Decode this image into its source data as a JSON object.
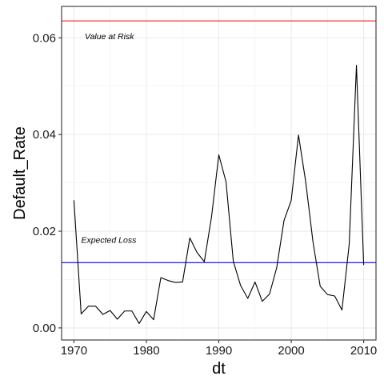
{
  "chart_data": {
    "type": "line",
    "xlabel": "dt",
    "ylabel": "Default_Rate",
    "xlim": [
      1968.3,
      2011.7
    ],
    "ylim": [
      -0.0025,
      0.0665
    ],
    "x_ticks": [
      1970,
      1980,
      1990,
      2000,
      2010
    ],
    "x_tick_labels": [
      "1970",
      "1980",
      "1990",
      "2000",
      "2010"
    ],
    "y_ticks": [
      0.0,
      0.02,
      0.04,
      0.06
    ],
    "y_tick_labels": [
      "0.00",
      "0.02",
      "0.04",
      "0.06"
    ],
    "grid": true,
    "series": [
      {
        "x": [
          1970,
          1971,
          1972,
          1973,
          1974,
          1975,
          1976,
          1977,
          1978,
          1979,
          1980,
          1981,
          1982,
          1983,
          1984,
          1985,
          1986,
          1987,
          1988,
          1989,
          1990,
          1991,
          1992,
          1993,
          1994,
          1995,
          1996,
          1997,
          1998,
          1999,
          2000,
          2001,
          2002,
          2003,
          2004,
          2005,
          2006,
          2007,
          2008,
          2009,
          2010
        ],
        "values": [
          0.0264,
          0.0029,
          0.0045,
          0.0045,
          0.0028,
          0.0036,
          0.0018,
          0.0035,
          0.0035,
          0.0009,
          0.0034,
          0.0017,
          0.0104,
          0.0098,
          0.0094,
          0.0095,
          0.0186,
          0.0156,
          0.0137,
          0.023,
          0.0358,
          0.0302,
          0.0138,
          0.0088,
          0.0061,
          0.0095,
          0.0055,
          0.007,
          0.0125,
          0.0222,
          0.0264,
          0.0399,
          0.0302,
          0.0178,
          0.0086,
          0.0069,
          0.0066,
          0.0037,
          0.0173,
          0.0543,
          0.013
        ],
        "color": "#000000"
      }
    ],
    "reference_lines": [
      {
        "label": "Value at Risk",
        "y": 0.0635,
        "color": "#ff0000"
      },
      {
        "label": "Expected Loss",
        "y": 0.0135,
        "color": "#0000ff"
      }
    ],
    "annotations": [
      {
        "text": "Value at Risk",
        "x": 1971.5,
        "y": 0.0597
      },
      {
        "text": "Expected Loss",
        "x": 1971.0,
        "y": 0.0176
      }
    ]
  }
}
